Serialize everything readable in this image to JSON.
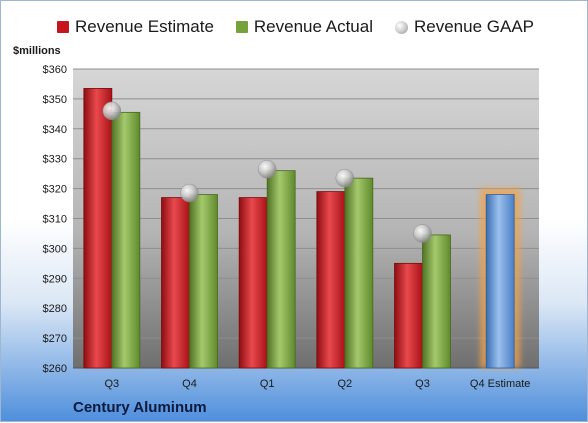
{
  "legend": {
    "estimate": "Revenue Estimate",
    "actual": "Revenue Actual",
    "gaap": "Revenue GAAP"
  },
  "unit_label": "$millions",
  "company": "Century Aluminum",
  "colors": {
    "estimate": "#c4161c",
    "actual": "#76a23c",
    "gaap": "#bdbdbd",
    "forecast": "#5b8ed0",
    "highlight": "#f3a24a"
  },
  "chart_data": {
    "type": "bar",
    "categories": [
      "Q3",
      "Q4",
      "Q1",
      "Q2",
      "Q3",
      "Q4 Estimate"
    ],
    "ylim": [
      260,
      360
    ],
    "yticks": [
      260,
      270,
      280,
      290,
      300,
      310,
      320,
      330,
      340,
      350,
      360
    ],
    "ytick_labels": [
      "$260",
      "$270",
      "$280",
      "$290",
      "$300",
      "$310",
      "$320",
      "$330",
      "$340",
      "$350",
      "$360"
    ],
    "series": [
      {
        "name": "Revenue Estimate",
        "values": [
          353.5,
          317,
          317,
          319,
          295,
          null
        ]
      },
      {
        "name": "Revenue Actual",
        "values": [
          345.5,
          318,
          326,
          323.5,
          304.5,
          null
        ]
      },
      {
        "name": "Revenue GAAP",
        "values": [
          346,
          318.5,
          326.5,
          323.5,
          305,
          null
        ]
      }
    ],
    "forecast": {
      "category_index": 5,
      "value": 318
    },
    "grid": true
  }
}
